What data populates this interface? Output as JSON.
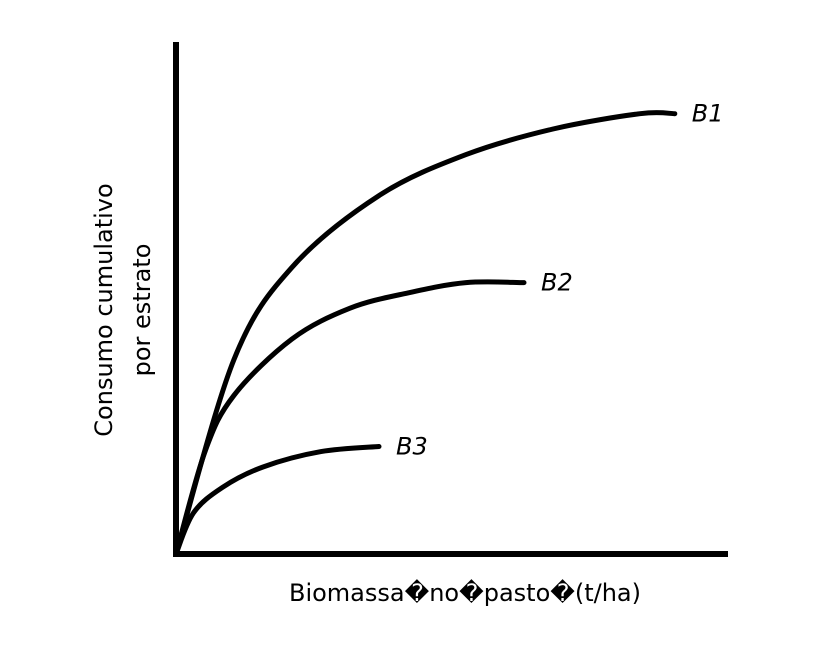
{
  "chart_data": {
    "type": "line",
    "title": "",
    "xlabel": "Biomassa�no�pasto�(t/ha)",
    "ylabel_lines": [
      "Consumo cumulativo",
      "por estrato"
    ],
    "xlim": [
      0,
      1
    ],
    "ylim": [
      0,
      1
    ],
    "grid": false,
    "legend": "none",
    "series": [
      {
        "name": "B1",
        "color": "#000000",
        "x": [
          0,
          0.1,
          0.2,
          0.35,
          0.5,
          0.65,
          0.8,
          0.86
        ],
        "y": [
          0,
          0.38,
          0.56,
          0.7,
          0.78,
          0.83,
          0.86,
          0.86
        ]
      },
      {
        "name": "B2",
        "color": "#000000",
        "x": [
          0,
          0.05,
          0.1,
          0.2,
          0.3,
          0.4,
          0.5,
          0.6
        ],
        "y": [
          0,
          0.2,
          0.31,
          0.42,
          0.48,
          0.51,
          0.53,
          0.53
        ]
      },
      {
        "name": "B3",
        "color": "#000000",
        "x": [
          0,
          0.03,
          0.08,
          0.15,
          0.25,
          0.35
        ],
        "y": [
          0,
          0.08,
          0.13,
          0.17,
          0.2,
          0.21
        ]
      }
    ]
  }
}
